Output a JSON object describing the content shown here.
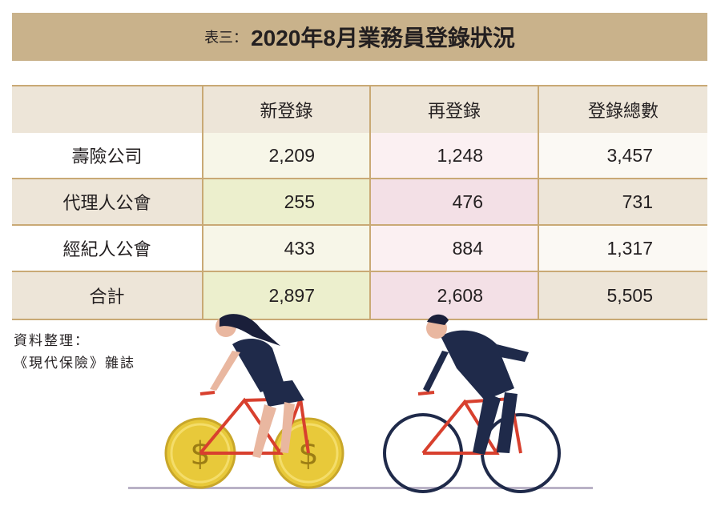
{
  "title": {
    "prefix": "表三：",
    "main": "2020年8月業務員登錄狀況"
  },
  "table": {
    "headers": [
      "",
      "新登錄",
      "再登錄",
      "登錄總數"
    ],
    "rows": [
      {
        "label": "壽險公司",
        "new": "2,209",
        "re": "1,248",
        "total": "3,457"
      },
      {
        "label": "代理人公會",
        "new": "255",
        "re": "476",
        "total": "731"
      },
      {
        "label": "經紀人公會",
        "new": "433",
        "re": "884",
        "total": "1,317"
      },
      {
        "label": "合計",
        "new": "2,897",
        "re": "2,608",
        "total": "5,505"
      }
    ]
  },
  "source": {
    "line1": "資料整理：",
    "line2": "《現代保險》雜誌"
  },
  "colors": {
    "banner": "#c9b28b",
    "grid": "#c9a975",
    "coin": "#e8c93a",
    "bike_frame": "#d8402e",
    "suit": "#1f2a4a"
  },
  "illustration": {
    "icons": [
      "woman-cyclist-icon",
      "man-cyclist-icon",
      "coin-wheel-icon"
    ]
  }
}
